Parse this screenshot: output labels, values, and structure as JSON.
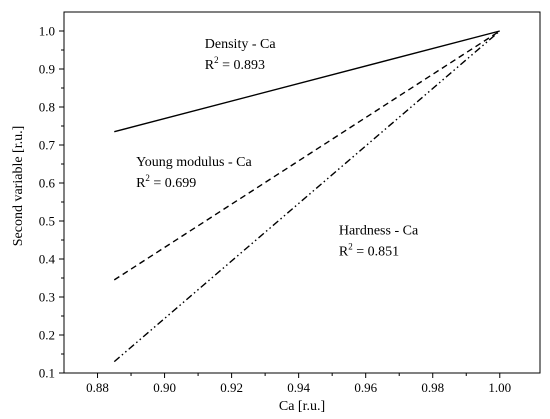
{
  "chart_data": {
    "type": "line",
    "title": "",
    "xlabel": "Ca [r.u.]",
    "ylabel": "Second variable [r.u.]",
    "xlim": [
      0.87,
      1.012
    ],
    "ylim": [
      0.1,
      1.05
    ],
    "xticks": [
      0.88,
      0.9,
      0.92,
      0.94,
      0.96,
      0.98,
      1.0
    ],
    "yticks": [
      0.1,
      0.2,
      0.3,
      0.4,
      0.5,
      0.6,
      0.7,
      0.8,
      0.9,
      1.0
    ],
    "x_tick_labels": [
      "0.88",
      "0.90",
      "0.92",
      "0.94",
      "0.96",
      "0.98",
      "1.00"
    ],
    "y_tick_labels": [
      "0.1",
      "0.2",
      "0.3",
      "0.4",
      "0.5",
      "0.6",
      "0.7",
      "0.8",
      "0.9",
      "1.0"
    ],
    "grid": false,
    "legend": "none",
    "series": [
      {
        "key": "density",
        "x": [
          0.885,
          1.0
        ],
        "y": [
          0.735,
          1.0
        ],
        "style": "solid"
      },
      {
        "key": "young",
        "x": [
          0.885,
          1.0
        ],
        "y": [
          0.345,
          1.0
        ],
        "style": "dashed"
      },
      {
        "key": "hardness",
        "x": [
          0.885,
          1.0
        ],
        "y": [
          0.13,
          1.0
        ],
        "style": "dashdotdot"
      }
    ],
    "annotations": [
      {
        "key": "density",
        "name": "Density - Ca",
        "r2_prefix": "R",
        "r2_sup": "2",
        "r2_value": " = 0.893",
        "x": 0.912,
        "y": 0.955
      },
      {
        "key": "young",
        "name": "Young modulus - Ca",
        "r2_prefix": "R",
        "r2_sup": "2",
        "r2_value": " = 0.699",
        "x": 0.8915,
        "y": 0.645
      },
      {
        "key": "hardness",
        "name": "Hardness - Ca",
        "r2_prefix": "R",
        "r2_sup": "2",
        "r2_value": " = 0.851",
        "x": 0.952,
        "y": 0.465
      }
    ]
  }
}
